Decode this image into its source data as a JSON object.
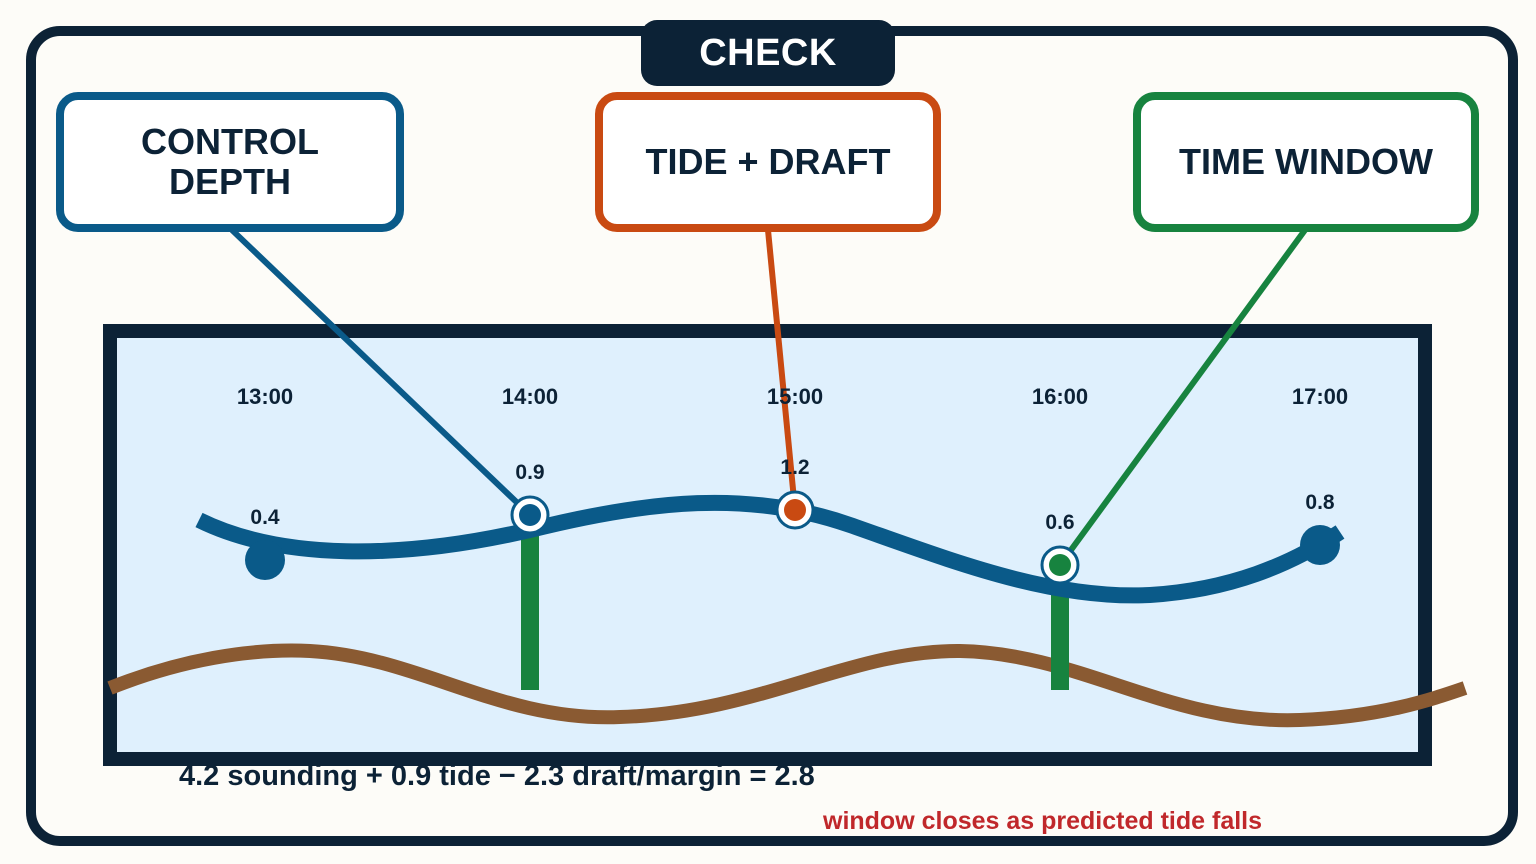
{
  "header": {
    "title": "CHECK"
  },
  "callouts": {
    "control_depth": {
      "line1": "CONTROL",
      "line2": "DEPTH"
    },
    "tide_draft": {
      "label": "TIDE + DRAFT"
    },
    "time_window": {
      "label": "TIME WINDOW"
    }
  },
  "chart_data": {
    "type": "line",
    "categories": [
      "13:00",
      "14:00",
      "15:00",
      "16:00",
      "17:00"
    ],
    "series": [
      {
        "values": [
          0.4,
          0.9,
          1.2,
          0.6,
          0.8
        ]
      }
    ],
    "highlighted": {
      "14:00": "control-depth",
      "15:00": "tide-draft",
      "16:00": "time-window"
    },
    "window": {
      "start": "14:00",
      "end": "16:00"
    }
  },
  "formula": "4.2 sounding + 0.9 tide − 2.3 draft/margin = 2.8",
  "note": "window closes as predicted tide falls",
  "colors": {
    "navy": "#0c2236",
    "tide_blue": "#0a5a89",
    "draft_orange": "#c94a12",
    "window_green": "#17833f",
    "seabed_brown": "#8a5a32",
    "water": "#dff0fd",
    "note_red": "#c0282b"
  }
}
